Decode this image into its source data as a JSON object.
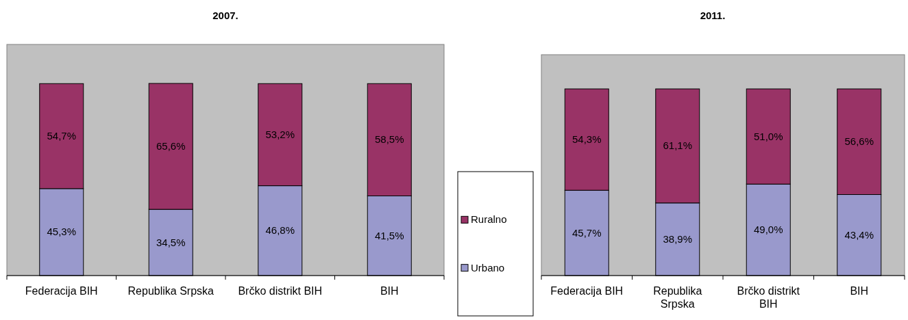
{
  "chart_data": [
    {
      "type": "bar",
      "title": "2007.",
      "stacked": true,
      "legend": "right",
      "categories": [
        "Federacija BIH",
        "Republika Srpska",
        "Brčko distrikt BIH",
        "BIH"
      ],
      "series": [
        {
          "name": "Urbano",
          "color": "#9999cc",
          "values": [
            45.3,
            34.5,
            46.8,
            41.5
          ],
          "value_labels": [
            "45,3%",
            "34,5%",
            "46,8%",
            "41,5%"
          ]
        },
        {
          "name": "Ruralno",
          "color": "#993366",
          "values": [
            54.7,
            65.6,
            53.2,
            58.5
          ],
          "value_labels": [
            "54,7%",
            "65,6%",
            "53,2%",
            "58,5%"
          ]
        }
      ]
    },
    {
      "type": "bar",
      "title": "2011.",
      "stacked": true,
      "categories": [
        "Federacija BIH",
        "Republika Srpska",
        "Brčko distrikt BIH",
        "BIH"
      ],
      "series": [
        {
          "color": "#9999cc",
          "values": [
            45.7,
            38.9,
            49.0,
            43.4
          ],
          "value_labels": [
            "45,7%",
            "38,9%",
            "49,0%",
            "43,4%"
          ]
        },
        {
          "color": "#993366",
          "values": [
            54.3,
            61.1,
            51.0,
            56.6
          ],
          "value_labels": [
            "54,3%",
            "61,1%",
            "51,0%",
            "56,6%"
          ]
        }
      ]
    }
  ]
}
